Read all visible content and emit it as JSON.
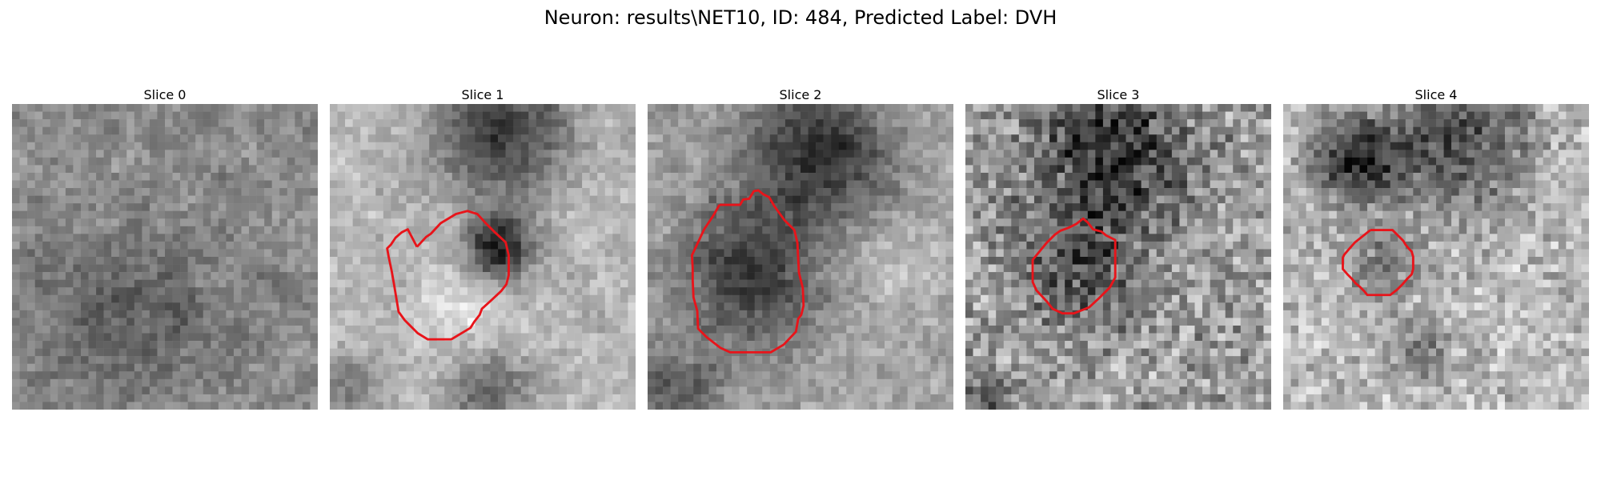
{
  "figure": {
    "title": "Neuron: results\\NET10, ID: 484, Predicted Label: DVH"
  },
  "panels": [
    {
      "title": "Slice 0",
      "contour": null,
      "tone": "grey-noise"
    },
    {
      "title": "Slice 1",
      "contour": [
        [
          11.4,
          18.7
        ],
        [
          12.6,
          17.4
        ],
        [
          13.2,
          17.0
        ],
        [
          14.5,
          15.6
        ],
        [
          16.5,
          14.4
        ],
        [
          18.0,
          14.0
        ],
        [
          19.3,
          14.4
        ],
        [
          20.4,
          15.6
        ],
        [
          21.6,
          16.8
        ],
        [
          23.0,
          18.1
        ],
        [
          23.4,
          19.8
        ],
        [
          23.4,
          22.4
        ],
        [
          23.1,
          23.6
        ],
        [
          22.4,
          24.5
        ],
        [
          21.0,
          25.8
        ],
        [
          19.9,
          26.8
        ],
        [
          19.6,
          27.6
        ],
        [
          18.9,
          28.5
        ],
        [
          18.4,
          29.3
        ],
        [
          15.9,
          30.8
        ],
        [
          12.8,
          30.8
        ],
        [
          11.5,
          30.0
        ],
        [
          9.8,
          28.3
        ],
        [
          9.0,
          27.2
        ],
        [
          8.8,
          26.0
        ],
        [
          8.4,
          23.6
        ],
        [
          8.1,
          21.9
        ],
        [
          7.7,
          20.0
        ],
        [
          7.5,
          18.9
        ],
        [
          8.0,
          18.4
        ],
        [
          8.6,
          17.5
        ],
        [
          9.4,
          16.8
        ],
        [
          10.2,
          16.4
        ],
        [
          11.4,
          18.7
        ]
      ],
      "tone": "ring-bright-dark-center"
    },
    {
      "title": "Slice 2",
      "contour": [
        [
          9.4,
          13.2
        ],
        [
          12.1,
          13.2
        ],
        [
          12.5,
          12.5
        ],
        [
          13.3,
          12.4
        ],
        [
          13.9,
          11.4
        ],
        [
          14.5,
          11.3
        ],
        [
          15.1,
          11.8
        ],
        [
          15.9,
          12.2
        ],
        [
          16.6,
          13.4
        ],
        [
          17.9,
          15.2
        ],
        [
          19.2,
          16.5
        ],
        [
          19.6,
          18.2
        ],
        [
          19.7,
          20.3
        ],
        [
          19.8,
          22.1
        ],
        [
          20.3,
          24.1
        ],
        [
          20.4,
          26.4
        ],
        [
          20.1,
          27.6
        ],
        [
          19.7,
          28.1
        ],
        [
          19.4,
          29.8
        ],
        [
          17.8,
          31.5
        ],
        [
          16.1,
          32.5
        ],
        [
          10.8,
          32.5
        ],
        [
          9.5,
          31.9
        ],
        [
          7.7,
          30.5
        ],
        [
          6.6,
          29.4
        ],
        [
          6.5,
          27.1
        ],
        [
          6.0,
          25.3
        ],
        [
          5.9,
          23.1
        ],
        [
          5.9,
          21.5
        ],
        [
          5.8,
          19.8
        ],
        [
          6.6,
          18.1
        ],
        [
          7.4,
          16.4
        ],
        [
          8.6,
          14.6
        ],
        [
          9.4,
          13.2
        ]
      ],
      "tone": "dark-blob"
    },
    {
      "title": "Slice 3",
      "contour": [
        [
          13.5,
          16.2
        ],
        [
          14.5,
          15.7
        ],
        [
          15.4,
          15.0
        ],
        [
          16.0,
          15.5
        ],
        [
          16.7,
          16.4
        ],
        [
          17.8,
          16.7
        ],
        [
          18.4,
          17.2
        ],
        [
          19.6,
          17.8
        ],
        [
          19.6,
          22.7
        ],
        [
          18.9,
          24.0
        ],
        [
          17.5,
          25.4
        ],
        [
          16.2,
          26.6
        ],
        [
          14.2,
          27.4
        ],
        [
          12.7,
          27.4
        ],
        [
          11.4,
          26.8
        ],
        [
          10.7,
          25.9
        ],
        [
          9.3,
          24.4
        ],
        [
          8.8,
          23.3
        ],
        [
          8.8,
          20.4
        ],
        [
          10.6,
          18.2
        ],
        [
          11.7,
          17.1
        ],
        [
          12.4,
          16.6
        ],
        [
          13.5,
          16.2
        ]
      ],
      "tone": "noisy-dark-mid"
    },
    {
      "title": "Slice 4",
      "contour": [
        [
          11.4,
          16.5
        ],
        [
          12.8,
          16.5
        ],
        [
          14.3,
          16.5
        ],
        [
          15.0,
          17.2
        ],
        [
          15.7,
          17.9
        ],
        [
          16.0,
          18.4
        ],
        [
          16.4,
          18.9
        ],
        [
          16.8,
          19.3
        ],
        [
          17.0,
          20.0
        ],
        [
          17.0,
          21.6
        ],
        [
          16.8,
          22.3
        ],
        [
          16.3,
          22.8
        ],
        [
          15.6,
          23.6
        ],
        [
          14.9,
          24.3
        ],
        [
          14.0,
          25.0
        ],
        [
          11.0,
          25.0
        ],
        [
          10.6,
          24.5
        ],
        [
          10.0,
          23.9
        ],
        [
          9.5,
          23.5
        ],
        [
          9.0,
          22.9
        ],
        [
          8.5,
          22.4
        ],
        [
          7.8,
          21.6
        ],
        [
          7.8,
          20.1
        ],
        [
          8.0,
          19.7
        ],
        [
          8.6,
          19.0
        ],
        [
          9.4,
          18.1
        ],
        [
          10.4,
          17.3
        ],
        [
          11.4,
          16.5
        ]
      ],
      "tone": "light-small-dark-center"
    }
  ],
  "colors": {
    "contour": "#e8141a",
    "background": "#ffffff"
  }
}
